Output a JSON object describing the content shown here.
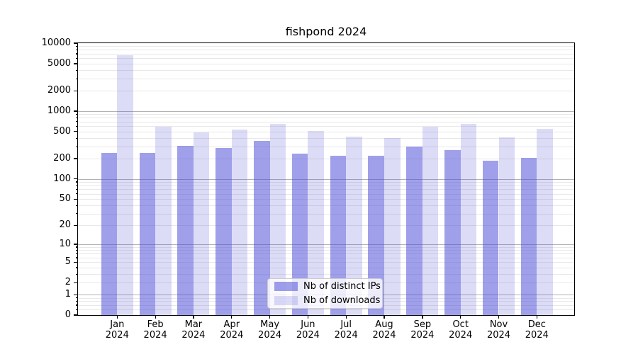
{
  "chart_data": {
    "type": "bar",
    "title": "fishpond 2024",
    "categories": [
      "Jan",
      "Feb",
      "Mar",
      "Apr",
      "May",
      "Jun",
      "Jul",
      "Aug",
      "Sep",
      "Oct",
      "Nov",
      "Dec"
    ],
    "category_year": "2024",
    "series": [
      {
        "name": "Nb of distinct IPs",
        "color": "#a2a2ed",
        "fill": "rgba(70,70,215,0.52)",
        "values": [
          245,
          245,
          308,
          290,
          365,
          236,
          218,
          218,
          303,
          268,
          187,
          203
        ]
      },
      {
        "name": "Nb of downloads",
        "color": "#dbdbf8",
        "fill": "rgba(70,70,215,0.19)",
        "values": [
          6600,
          590,
          490,
          530,
          655,
          505,
          420,
          405,
          590,
          645,
          410,
          555
        ]
      }
    ],
    "y_axis": {
      "scale": "log1p",
      "range": [
        0,
        10000
      ],
      "tick_labels": [
        "10000",
        "5000",
        "2000",
        "1000",
        "500",
        "200",
        "100",
        "50",
        "20",
        "10",
        "5",
        "2",
        "1",
        "0"
      ],
      "ticks": [
        10000,
        5000,
        2000,
        1000,
        500,
        200,
        100,
        50,
        20,
        10,
        5,
        2,
        1,
        0
      ],
      "major_gridlines": [
        1,
        10,
        100,
        1000
      ],
      "grid": true
    },
    "x_axis": {
      "tick_labels": [
        "Jan\n2024",
        "Feb\n2024",
        "Mar\n2024",
        "Apr\n2024",
        "May\n2024",
        "Jun\n2024",
        "Jul\n2024",
        "Aug\n2024",
        "Sep\n2024",
        "Oct\n2024",
        "Nov\n2024",
        "Dec\n2024"
      ]
    },
    "legend": {
      "position": "lower center",
      "entries": [
        "Nb of distinct IPs",
        "Nb of downloads"
      ]
    }
  }
}
